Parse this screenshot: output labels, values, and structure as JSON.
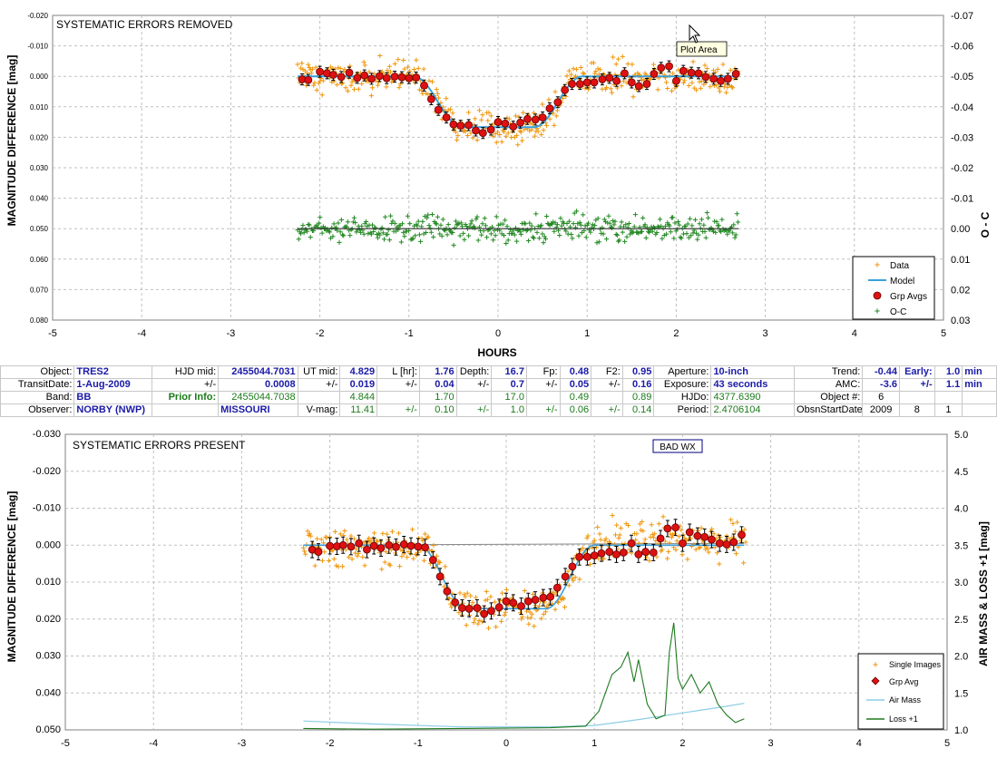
{
  "top_chart": {
    "title": "SYSTEMATIC ERRORS REMOVED",
    "tooltip": "Plot Area",
    "y_label": "MAGNITUDE DIFFERENCE [mag]",
    "y2_label": "O - C",
    "x_label": "HOURS",
    "y_ticks": [
      "-0.020",
      "-0.010",
      "0.000",
      "0.010",
      "0.020",
      "0.030",
      "0.040",
      "0.050",
      "0.060",
      "0.070",
      "0.080"
    ],
    "y2_ticks": [
      "-0.07",
      "-0.06",
      "-0.05",
      "-0.04",
      "-0.03",
      "-0.02",
      "-0.01",
      "0.00",
      "0.01",
      "0.02",
      "0.03"
    ],
    "x_ticks": [
      "-5",
      "-4",
      "-3",
      "-2",
      "-1",
      "0",
      "1",
      "2",
      "3",
      "4",
      "5"
    ],
    "legend": [
      "Data",
      "Model",
      "Grp Avgs",
      "O-C"
    ]
  },
  "bottom_chart": {
    "title": "SYSTEMATIC ERRORS PRESENT",
    "badge": "BAD WX",
    "y_label": "MAGNITUDE DIFFERENCE [mag]",
    "y2_label": "AIR MASS & LOSS +1 [mag]",
    "y_ticks": [
      "-0.030",
      "-0.020",
      "-0.010",
      "0.000",
      "0.010",
      "0.020",
      "0.030",
      "0.040",
      "0.050"
    ],
    "y2_ticks": [
      "5.0",
      "4.5",
      "4.0",
      "3.5",
      "3.0",
      "2.5",
      "2.0",
      "1.5",
      "1.0"
    ],
    "x_ticks": [
      "-5",
      "-4",
      "-3",
      "-2",
      "-1",
      "0",
      "1",
      "2",
      "3",
      "4",
      "5"
    ],
    "legend": [
      "Single Images",
      "Grp Avg",
      "Air Mass",
      "Loss +1"
    ]
  },
  "info": {
    "r1": [
      "Object:",
      "TRES2",
      "HJD mid:",
      "2455044.7031",
      "UT mid:",
      "4.829",
      "L [hr]:",
      "1.76",
      "Depth:",
      "16.7",
      "Fp:",
      "0.48",
      "F2:",
      "0.95",
      "Aperture:",
      "10-inch",
      "Trend:",
      "-0.44",
      "Early:",
      "1.0",
      "min"
    ],
    "r2": [
      "TransitDate:",
      "1-Aug-2009",
      "+/-",
      "0.0008",
      "+/-",
      "0.019",
      "+/-",
      "0.04",
      "+/-",
      "0.7",
      "+/-",
      "0.05",
      "+/-",
      "0.16",
      "Exposure:",
      "43 seconds",
      "AMC:",
      "-3.6",
      "+/-",
      "1.1",
      "min"
    ],
    "r3": [
      "Band:",
      "BB",
      "Prior Info:",
      "2455044.7038",
      "",
      "4.844",
      "",
      "1.70",
      "",
      "17.0",
      "",
      "0.49",
      "",
      "0.89",
      "HJDo:",
      "4377.6390",
      "Object #:",
      "6",
      "",
      "",
      ""
    ],
    "r4": [
      "Observer:",
      "NORBY (NWP)",
      "",
      "MISSOURI",
      "V-mag:",
      "11.41",
      "+/-",
      "0.10",
      "+/-",
      "1.0",
      "+/-",
      "0.06",
      "+/-",
      "0.14",
      "Period:",
      "2.4706104",
      "ObsnStartDate:",
      "2009",
      "8",
      "1",
      ""
    ]
  },
  "colors": {
    "data": "#f0960a",
    "model": "#3aa0dc",
    "grp": "#dd1111",
    "oc": "#228822",
    "airmass": "#8ccde6",
    "loss": "#1e7a1e",
    "label_blue": "#1a1aa8"
  },
  "chart_data": [
    {
      "type": "scatter",
      "title": "SYSTEMATIC ERRORS REMOVED",
      "xlabel": "HOURS",
      "ylabel": "MAGNITUDE DIFFERENCE [mag]",
      "y2label": "O - C",
      "xlim": [
        -5,
        5
      ],
      "ylim": [
        -0.02,
        0.08
      ],
      "y2lim": [
        -0.07,
        0.03
      ],
      "y_inverted": true,
      "legend_position": "bottom-right",
      "transit": {
        "start_hr": -2.25,
        "end_hr": 2.7,
        "ingress_start_hr": -0.95,
        "ingress_end_hr": -0.4,
        "egress_start_hr": 0.4,
        "egress_end_hr": 0.95,
        "depth_mag": 0.0167,
        "baseline_mag": 0.0
      },
      "series": [
        {
          "name": "Data",
          "kind": "scatter-plus",
          "scatter_mag": 0.0045
        },
        {
          "name": "Model",
          "kind": "line"
        },
        {
          "name": "Grp Avgs",
          "kind": "points-with-errorbars",
          "x": [
            -2.2,
            -2.13,
            -2.0,
            -1.92,
            -1.85,
            -1.76,
            -1.67,
            -1.58,
            -1.5,
            -1.42,
            -1.33,
            -1.25,
            -1.16,
            -1.08,
            -1.0,
            -0.92,
            -0.83,
            -0.75,
            -0.67,
            -0.58,
            -0.5,
            -0.42,
            -0.33,
            -0.25,
            -0.17,
            -0.08,
            0.0,
            0.08,
            0.17,
            0.25,
            0.33,
            0.42,
            0.5,
            0.58,
            0.67,
            0.75,
            0.83,
            0.92,
            1.0,
            1.08,
            1.17,
            1.25,
            1.33,
            1.42,
            1.5,
            1.58,
            1.67,
            1.75,
            1.83,
            1.92,
            2.0,
            2.08,
            2.17,
            2.25,
            2.33,
            2.42,
            2.5,
            2.58,
            2.67
          ],
          "y": [
            0.001,
            0.0012,
            -0.0015,
            -0.001,
            -0.0005,
            0.0002,
            -0.0012,
            0.0005,
            -0.0003,
            0.0008,
            -0.0001,
            0.0006,
            0.0001,
            0.0003,
            0.0006,
            0.0004,
            0.003,
            0.0075,
            0.011,
            0.0135,
            0.0158,
            0.0162,
            0.016,
            0.0178,
            0.0186,
            0.0175,
            0.015,
            0.0155,
            0.0165,
            0.0152,
            0.014,
            0.0142,
            0.0135,
            0.0105,
            0.0085,
            0.0045,
            0.0025,
            0.0025,
            0.002,
            0.002,
            0.001,
            0.0005,
            0.0015,
            -0.001,
            0.002,
            0.0032,
            0.0025,
            -0.0008,
            -0.0028,
            -0.0033,
            0.0015,
            -0.0018,
            -0.0012,
            -0.001,
            0.0002,
            0.0008,
            0.0015,
            0.0008,
            -0.0008
          ],
          "err": 0.0018
        },
        {
          "name": "O-C",
          "kind": "scatter-plus",
          "baseline": 0.0,
          "scatter_mag": 0.0035
        }
      ]
    },
    {
      "type": "scatter",
      "title": "SYSTEMATIC ERRORS PRESENT",
      "ylabel": "MAGNITUDE DIFFERENCE [mag]",
      "y2label": "AIR MASS & LOSS +1 [mag]",
      "xlim": [
        -5,
        5
      ],
      "ylim": [
        -0.03,
        0.05
      ],
      "y2lim": [
        1.0,
        5.0
      ],
      "y_inverted": true,
      "legend_position": "bottom-right",
      "series": [
        {
          "name": "Single Images",
          "kind": "scatter-plus",
          "scatter_mag": 0.0045
        },
        {
          "name": "Grp Avg",
          "kind": "points-with-errorbars",
          "x": [
            -2.2,
            -2.13,
            -2.0,
            -1.92,
            -1.85,
            -1.76,
            -1.67,
            -1.58,
            -1.5,
            -1.42,
            -1.33,
            -1.25,
            -1.16,
            -1.08,
            -1.0,
            -0.92,
            -0.83,
            -0.75,
            -0.67,
            -0.58,
            -0.5,
            -0.42,
            -0.33,
            -0.25,
            -0.17,
            -0.08,
            0.0,
            0.08,
            0.17,
            0.25,
            0.33,
            0.42,
            0.5,
            0.58,
            0.67,
            0.75,
            0.83,
            0.92,
            1.0,
            1.08,
            1.17,
            1.25,
            1.33,
            1.42,
            1.5,
            1.58,
            1.67,
            1.75,
            1.83,
            1.92,
            2.0,
            2.08,
            2.17,
            2.25,
            2.33,
            2.42,
            2.5,
            2.58,
            2.67
          ],
          "y": [
            0.0012,
            0.0018,
            0.0002,
            0.0003,
            0.0,
            0.0004,
            -0.0005,
            0.0012,
            0.0002,
            0.0008,
            0.0,
            0.0005,
            -0.0002,
            0.0002,
            0.0004,
            0.0006,
            0.004,
            0.0085,
            0.0125,
            0.0155,
            0.017,
            0.0172,
            0.017,
            0.0186,
            0.0178,
            0.0168,
            0.0152,
            0.0156,
            0.0165,
            0.0152,
            0.0148,
            0.0142,
            0.014,
            0.0115,
            0.0085,
            0.0058,
            0.0032,
            0.0032,
            0.0028,
            0.0022,
            0.0018,
            0.0025,
            0.002,
            -0.0005,
            0.0025,
            0.0018,
            0.002,
            -0.0018,
            -0.0045,
            -0.0048,
            -0.0005,
            -0.0035,
            -0.0025,
            -0.0022,
            -0.0015,
            -0.0005,
            -0.0002,
            -0.0008,
            -0.0028
          ],
          "err": 0.0022
        },
        {
          "name": "Air Mass",
          "kind": "line",
          "x": [
            -2.3,
            -1.5,
            -0.5,
            0.5,
            1.0,
            1.5,
            2.0,
            2.5,
            2.7
          ],
          "y": [
            1.12,
            1.08,
            1.04,
            1.04,
            1.06,
            1.14,
            1.23,
            1.32,
            1.36
          ]
        },
        {
          "name": "Loss +1",
          "kind": "line",
          "x": [
            -2.3,
            -1.5,
            -0.5,
            0.5,
            0.9,
            1.05,
            1.2,
            1.3,
            1.38,
            1.45,
            1.5,
            1.6,
            1.7,
            1.8,
            1.85,
            1.9,
            1.95,
            2.0,
            2.1,
            2.2,
            2.3,
            2.4,
            2.5,
            2.6,
            2.7
          ],
          "y": [
            1.02,
            1.01,
            1.02,
            1.03,
            1.05,
            1.25,
            1.75,
            1.85,
            2.05,
            1.65,
            1.95,
            1.35,
            1.15,
            1.2,
            2.05,
            2.45,
            1.7,
            1.55,
            1.75,
            1.5,
            1.65,
            1.35,
            1.2,
            1.1,
            1.15
          ]
        },
        {
          "name": "Model",
          "kind": "line"
        }
      ]
    }
  ]
}
